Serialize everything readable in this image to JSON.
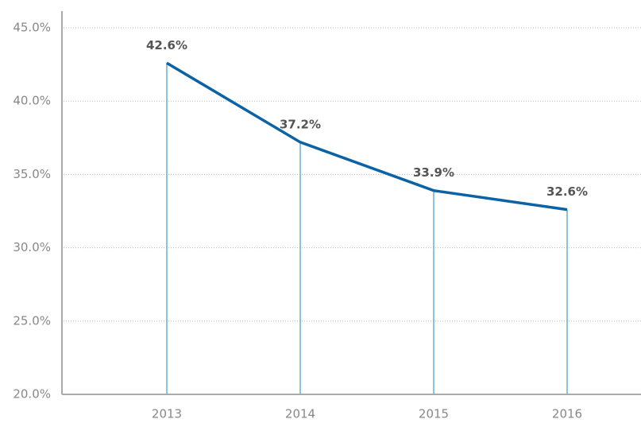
{
  "chart_data": {
    "type": "line",
    "categories": [
      "2013",
      "2014",
      "2015",
      "2016"
    ],
    "series": [
      {
        "color": "#0b62a4",
        "values": [
          42.6,
          37.2,
          33.9,
          32.6
        ],
        "value_labels": [
          "42.6%",
          "37.2%",
          "33.9%",
          "32.6%"
        ]
      }
    ],
    "ylim": [
      20,
      45
    ],
    "yticks": [
      {
        "value": 20,
        "label": "20.0%"
      },
      {
        "value": 25,
        "label": "25.0%"
      },
      {
        "value": 30,
        "label": "30.0%"
      },
      {
        "value": 35,
        "label": "35.0%"
      },
      {
        "value": 40,
        "label": "40.0%"
      },
      {
        "value": 45,
        "label": "45.0%"
      }
    ],
    "grid": true,
    "drop_line_color": "#6aaed6"
  }
}
